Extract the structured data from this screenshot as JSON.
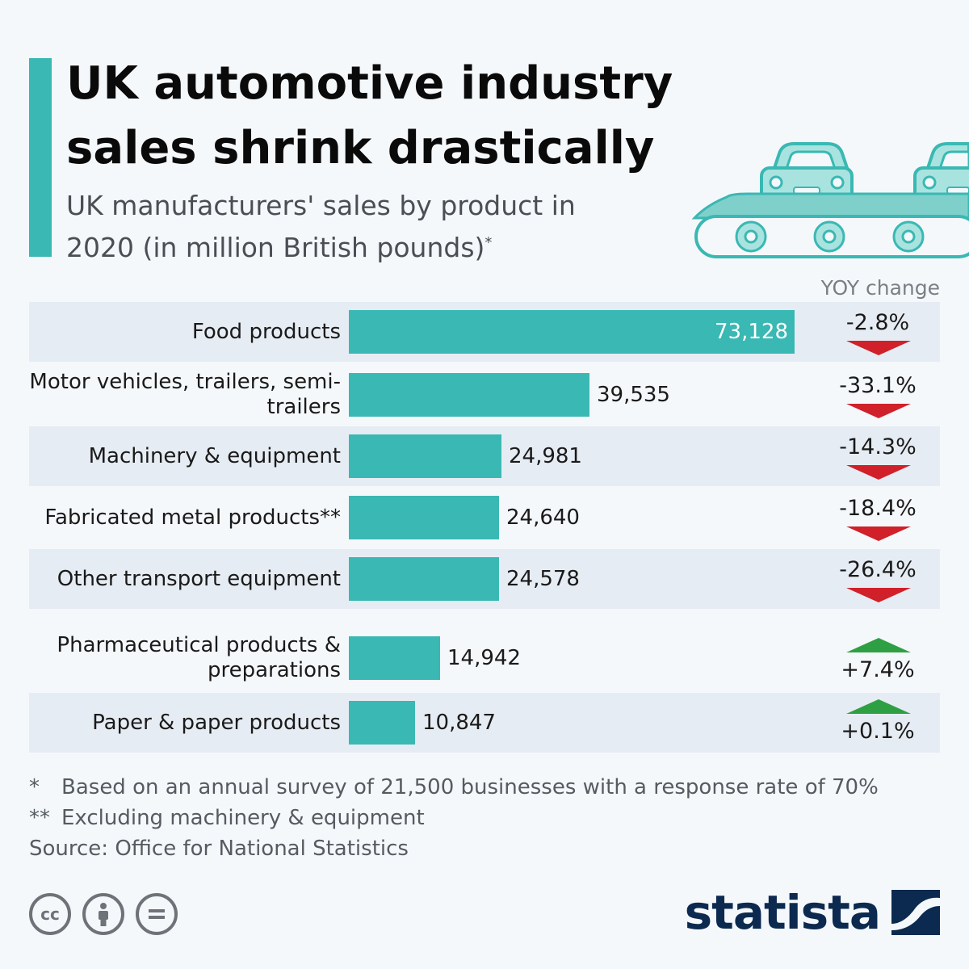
{
  "title": "UK automotive industry sales shrink drastically",
  "subtitle": "UK manufacturers' sales by product in 2020 (in million British pounds)",
  "subtitle_mark": "*",
  "yoy_header": "YOY change",
  "colors": {
    "accent": "#3ab8b3",
    "down": "#d0202a",
    "up": "#2ea043",
    "brand": "#0c2a4f"
  },
  "chart_data": {
    "type": "bar",
    "orientation": "horizontal",
    "categories": [
      "Food products",
      "Motor vehicles, trailers, semi-trailers",
      "Machinery & equipment",
      "Fabricated metal products**",
      "Other transport equipment",
      "Pharmaceutical products & preparations",
      "Paper & paper products"
    ],
    "values": [
      73128,
      39535,
      24981,
      24640,
      24578,
      14942,
      10847
    ],
    "value_labels": [
      "73,128",
      "39,535",
      "24,981",
      "24,640",
      "24,578",
      "14,942",
      "10,847"
    ],
    "yoy_change": [
      "-2.8%",
      "-33.1%",
      "-14.3%",
      "-18.4%",
      "-26.4%",
      "+7.4%",
      "+0.1%"
    ],
    "yoy_direction": [
      "down",
      "down",
      "down",
      "down",
      "down",
      "up",
      "up"
    ]
  },
  "notes": [
    {
      "mark": "*",
      "text": "Based on an annual survey of 21,500 businesses with a response rate of 70%"
    },
    {
      "mark": "**",
      "text": "Excluding machinery & equipment"
    }
  ],
  "source": "Source: Office for National Statistics",
  "license_icons": [
    "cc-icon",
    "attribution-icon",
    "no-derivatives-icon"
  ],
  "brand": "statista"
}
